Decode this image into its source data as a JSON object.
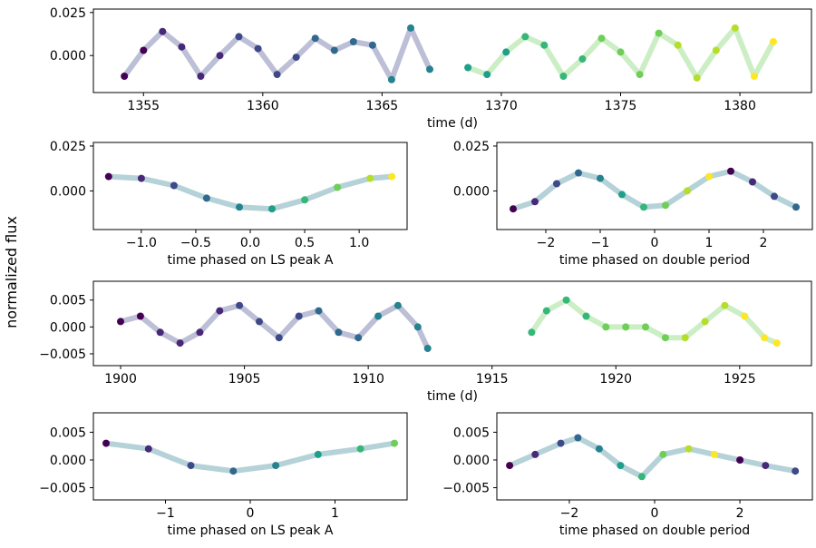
{
  "figure": {
    "ylabel": "normalized flux"
  },
  "chart_data": [
    {
      "id": "p1",
      "type": "scatter",
      "xlabel": "time (d)",
      "xlim": [
        1352.9,
        1383.0
      ],
      "ylim": [
        -0.0215,
        0.027
      ],
      "xticks": [
        1355,
        1360,
        1365,
        1370,
        1375,
        1380
      ],
      "yticks": [
        0.0,
        0.025
      ],
      "ytick_labels": [
        "0.000",
        "0.025"
      ],
      "series": [
        {
          "name": "segment 1",
          "x": [
            1354.2,
            1355.0,
            1355.8,
            1356.6,
            1357.4,
            1358.2,
            1359.0,
            1359.8,
            1360.6,
            1361.4,
            1362.2,
            1363.0,
            1363.8,
            1364.6,
            1365.4,
            1366.2,
            1367.0
          ],
          "y": [
            -0.012,
            0.003,
            0.014,
            0.005,
            -0.012,
            0.0,
            0.011,
            0.004,
            -0.011,
            -0.001,
            0.01,
            0.003,
            0.008,
            0.006,
            -0.014,
            0.016,
            -0.008
          ]
        },
        {
          "name": "segment 2",
          "x": [
            1368.6,
            1369.4,
            1370.2,
            1371.0,
            1371.8,
            1372.6,
            1373.4,
            1374.2,
            1375.0,
            1375.8,
            1376.6,
            1377.4,
            1378.2,
            1379.0,
            1379.8,
            1380.6,
            1381.4
          ],
          "y": [
            -0.007,
            -0.011,
            0.002,
            0.011,
            0.006,
            -0.012,
            -0.002,
            0.01,
            0.002,
            -0.011,
            0.013,
            0.006,
            -0.013,
            0.003,
            0.016,
            -0.012,
            0.008
          ]
        }
      ]
    },
    {
      "id": "p2",
      "type": "scatter",
      "xlabel": "time phased on LS peak A",
      "xlim": [
        -1.44,
        1.44
      ],
      "ylim": [
        -0.0215,
        0.027
      ],
      "xticks": [
        -1.0,
        -0.5,
        0.0,
        0.5,
        1.0
      ],
      "xtick_labels": [
        "−1.0",
        "−0.5",
        "0.0",
        "0.5",
        "1.0"
      ],
      "yticks": [
        0.0,
        0.025
      ],
      "ytick_labels": [
        "0.000",
        "0.025"
      ],
      "series": [
        {
          "name": "folded",
          "x": [
            -1.3,
            -1.0,
            -0.7,
            -0.4,
            -0.1,
            0.2,
            0.5,
            0.8,
            1.1,
            1.3
          ],
          "y": [
            0.008,
            0.007,
            0.003,
            -0.004,
            -0.009,
            -0.01,
            -0.005,
            0.002,
            0.007,
            0.008
          ]
        }
      ]
    },
    {
      "id": "p3",
      "type": "scatter",
      "xlabel": "time phased on double period",
      "xlim": [
        -2.9,
        2.9
      ],
      "ylim": [
        -0.0215,
        0.027
      ],
      "xticks": [
        -2,
        -1,
        0,
        1,
        2
      ],
      "xtick_labels": [
        "−2",
        "−1",
        "0",
        "1",
        "2"
      ],
      "yticks": [
        0.0,
        0.025
      ],
      "ytick_labels": [
        "0.000",
        "0.025"
      ],
      "series": [
        {
          "name": "folded",
          "x": [
            -2.6,
            -2.2,
            -1.8,
            -1.4,
            -1.0,
            -0.6,
            -0.2,
            0.2,
            0.6,
            1.0,
            1.4,
            1.8,
            2.2,
            2.6
          ],
          "y": [
            -0.01,
            -0.006,
            0.004,
            0.01,
            0.007,
            -0.002,
            -0.009,
            -0.008,
            0.0,
            0.008,
            0.011,
            0.005,
            -0.003,
            -0.009
          ]
        }
      ]
    },
    {
      "id": "p4",
      "type": "scatter",
      "xlabel": "time (d)",
      "xlim": [
        1898.9,
        1927.9
      ],
      "ylim": [
        -0.0072,
        0.0085
      ],
      "xticks": [
        1900,
        1905,
        1910,
        1915,
        1920,
        1925
      ],
      "yticks": [
        -0.005,
        0.0,
        0.005
      ],
      "ytick_labels": [
        "−0.005",
        "0.000",
        "0.005"
      ],
      "series": [
        {
          "name": "segment 1",
          "x": [
            1900.0,
            1900.8,
            1901.6,
            1902.4,
            1903.2,
            1904.0,
            1904.8,
            1905.6,
            1906.4,
            1907.2,
            1908.0,
            1908.8,
            1909.6,
            1910.4,
            1911.2,
            1912.0,
            1912.4
          ],
          "y": [
            0.001,
            0.002,
            -0.001,
            -0.003,
            -0.001,
            0.003,
            0.004,
            0.001,
            -0.002,
            0.002,
            0.003,
            -0.001,
            -0.002,
            0.002,
            0.004,
            0.0,
            -0.004
          ]
        },
        {
          "name": "segment 2",
          "x": [
            1916.6,
            1917.2,
            1918.0,
            1918.8,
            1919.6,
            1920.4,
            1921.2,
            1922.0,
            1922.8,
            1923.6,
            1924.4,
            1925.2,
            1926.0,
            1926.5
          ],
          "y": [
            -0.001,
            0.003,
            0.005,
            0.002,
            0.0,
            0.0,
            0.0,
            -0.002,
            -0.002,
            0.001,
            0.004,
            0.002,
            -0.002,
            -0.003
          ]
        }
      ]
    },
    {
      "id": "p5",
      "type": "scatter",
      "xlabel": "time phased on LS peak A",
      "xlim": [
        -1.85,
        1.85
      ],
      "ylim": [
        -0.0072,
        0.0085
      ],
      "xticks": [
        -1,
        0,
        1
      ],
      "xtick_labels": [
        "−1",
        "0",
        "1"
      ],
      "yticks": [
        -0.005,
        0.0,
        0.005
      ],
      "ytick_labels": [
        "−0.005",
        "0.000",
        "0.005"
      ],
      "series": [
        {
          "name": "folded",
          "x": [
            -1.7,
            -1.2,
            -0.7,
            -0.2,
            0.3,
            0.8,
            1.3,
            1.7
          ],
          "y": [
            0.003,
            0.002,
            -0.001,
            -0.002,
            -0.001,
            0.001,
            0.002,
            0.003
          ]
        }
      ]
    },
    {
      "id": "p6",
      "type": "scatter",
      "xlabel": "time phased on double period",
      "xlim": [
        -3.7,
        3.7
      ],
      "ylim": [
        -0.0072,
        0.0085
      ],
      "xticks": [
        -2,
        0,
        2
      ],
      "xtick_labels": [
        "−2",
        "0",
        "2"
      ],
      "yticks": [
        -0.005,
        0.0,
        0.005
      ],
      "ytick_labels": [
        "−0.005",
        "0.000",
        "0.005"
      ],
      "series": [
        {
          "name": "folded",
          "x": [
            -3.4,
            -2.8,
            -2.2,
            -1.8,
            -1.3,
            -0.8,
            -0.3,
            0.2,
            0.8,
            1.4,
            2.0,
            2.6,
            3.3
          ],
          "y": [
            -0.001,
            0.001,
            0.003,
            0.004,
            0.002,
            -0.001,
            -0.003,
            0.001,
            0.002,
            0.001,
            0.0,
            -0.001,
            -0.002
          ]
        }
      ]
    }
  ]
}
